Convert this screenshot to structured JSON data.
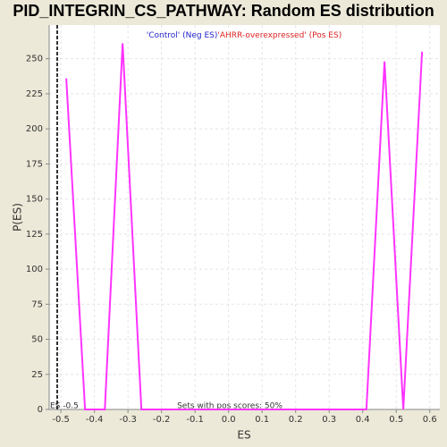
{
  "chart_data": {
    "type": "line",
    "title": "PID_INTEGRIN_CS_PATHWAY: Random ES distribution",
    "x_label": "ES",
    "y_label": "P(ES)",
    "legend": [
      {
        "name": "'Control' (Neg ES)",
        "color": "#2222cc"
      },
      {
        "name": "'AHRR-overexpressed' (Pos ES)",
        "color": "#dd2222"
      }
    ],
    "annotation": "Sets with pos scores: 50%",
    "es_line": {
      "value": -0.511,
      "label": "ES -0.5"
    },
    "x": [
      -0.484,
      -0.428,
      -0.369,
      -0.316,
      -0.26,
      0.411,
      0.465,
      0.521,
      0.577
    ],
    "series": [
      {
        "color": "#ff33ff",
        "values": [
          236,
          0,
          0,
          261,
          0,
          0,
          248,
          0,
          255
        ]
      }
    ],
    "xlim": [
      -0.535,
      0.63
    ],
    "ylim": [
      0,
      274
    ],
    "xticks": [
      -0.5,
      -0.4,
      -0.3,
      -0.2,
      -0.1,
      {
        "value": 0,
        "label": "0.0"
      },
      0.1,
      0.2,
      0.3,
      0.4,
      0.5,
      0.6
    ],
    "yticks": [
      0,
      25,
      50,
      75,
      100,
      125,
      150,
      175,
      200,
      225,
      250
    ],
    "grid": true
  }
}
